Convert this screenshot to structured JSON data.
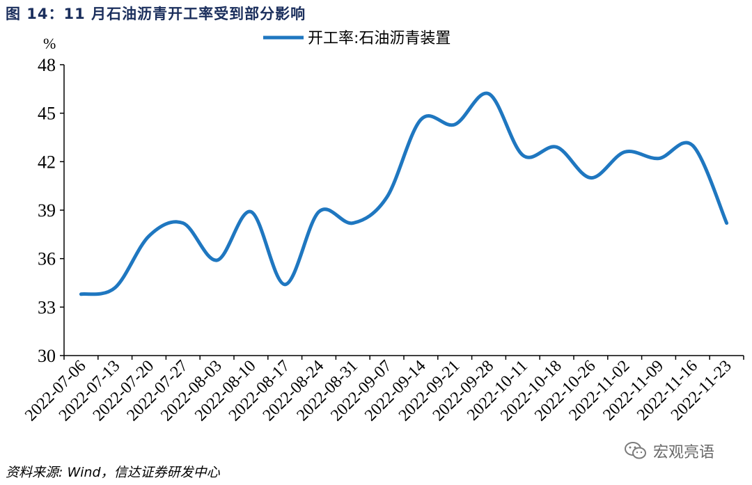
{
  "figure": {
    "title": "图 14：11 月石油沥青开工率受到部分影响",
    "source": "资料来源: Wind，信达证券研发中心",
    "watermark": "宏观亮语"
  },
  "chart_data": {
    "type": "line",
    "title": "",
    "xlabel": "",
    "ylabel": "%",
    "ylim": [
      30,
      48
    ],
    "yticks": [
      30,
      33,
      36,
      39,
      42,
      45,
      48
    ],
    "grid": false,
    "legend_position": "top-center",
    "x_tick_labels": [
      "2022-07-06",
      "2022-07-13",
      "2022-07-20",
      "2022-07-27",
      "2022-08-03",
      "2022-08-10",
      "2022-08-17",
      "2022-08-24",
      "2022-08-31",
      "2022-09-07",
      "2022-09-14",
      "2022-09-21",
      "2022-09-28",
      "2022-10-11",
      "2022-10-18",
      "2022-10-26",
      "2022-11-02",
      "2022-11-09",
      "2022-11-16",
      "2022-11-23"
    ],
    "series": [
      {
        "name": "开工率:石油沥青装置",
        "color": "#1f77c0",
        "x": [
          "2022-07-06",
          "2022-07-13",
          "2022-07-20",
          "2022-07-27",
          "2022-08-03",
          "2022-08-10",
          "2022-08-17",
          "2022-08-24",
          "2022-08-31",
          "2022-09-07",
          "2022-09-14",
          "2022-09-21",
          "2022-09-28",
          "2022-10-11",
          "2022-10-18",
          "2022-10-26",
          "2022-11-02",
          "2022-11-09",
          "2022-11-16",
          "2022-11-23"
        ],
        "values": [
          33.8,
          34.2,
          37.4,
          38.2,
          35.9,
          38.9,
          34.4,
          38.9,
          38.2,
          39.8,
          44.6,
          44.3,
          46.2,
          42.4,
          42.9,
          41.0,
          42.6,
          42.2,
          43.0,
          38.2
        ]
      }
    ]
  }
}
